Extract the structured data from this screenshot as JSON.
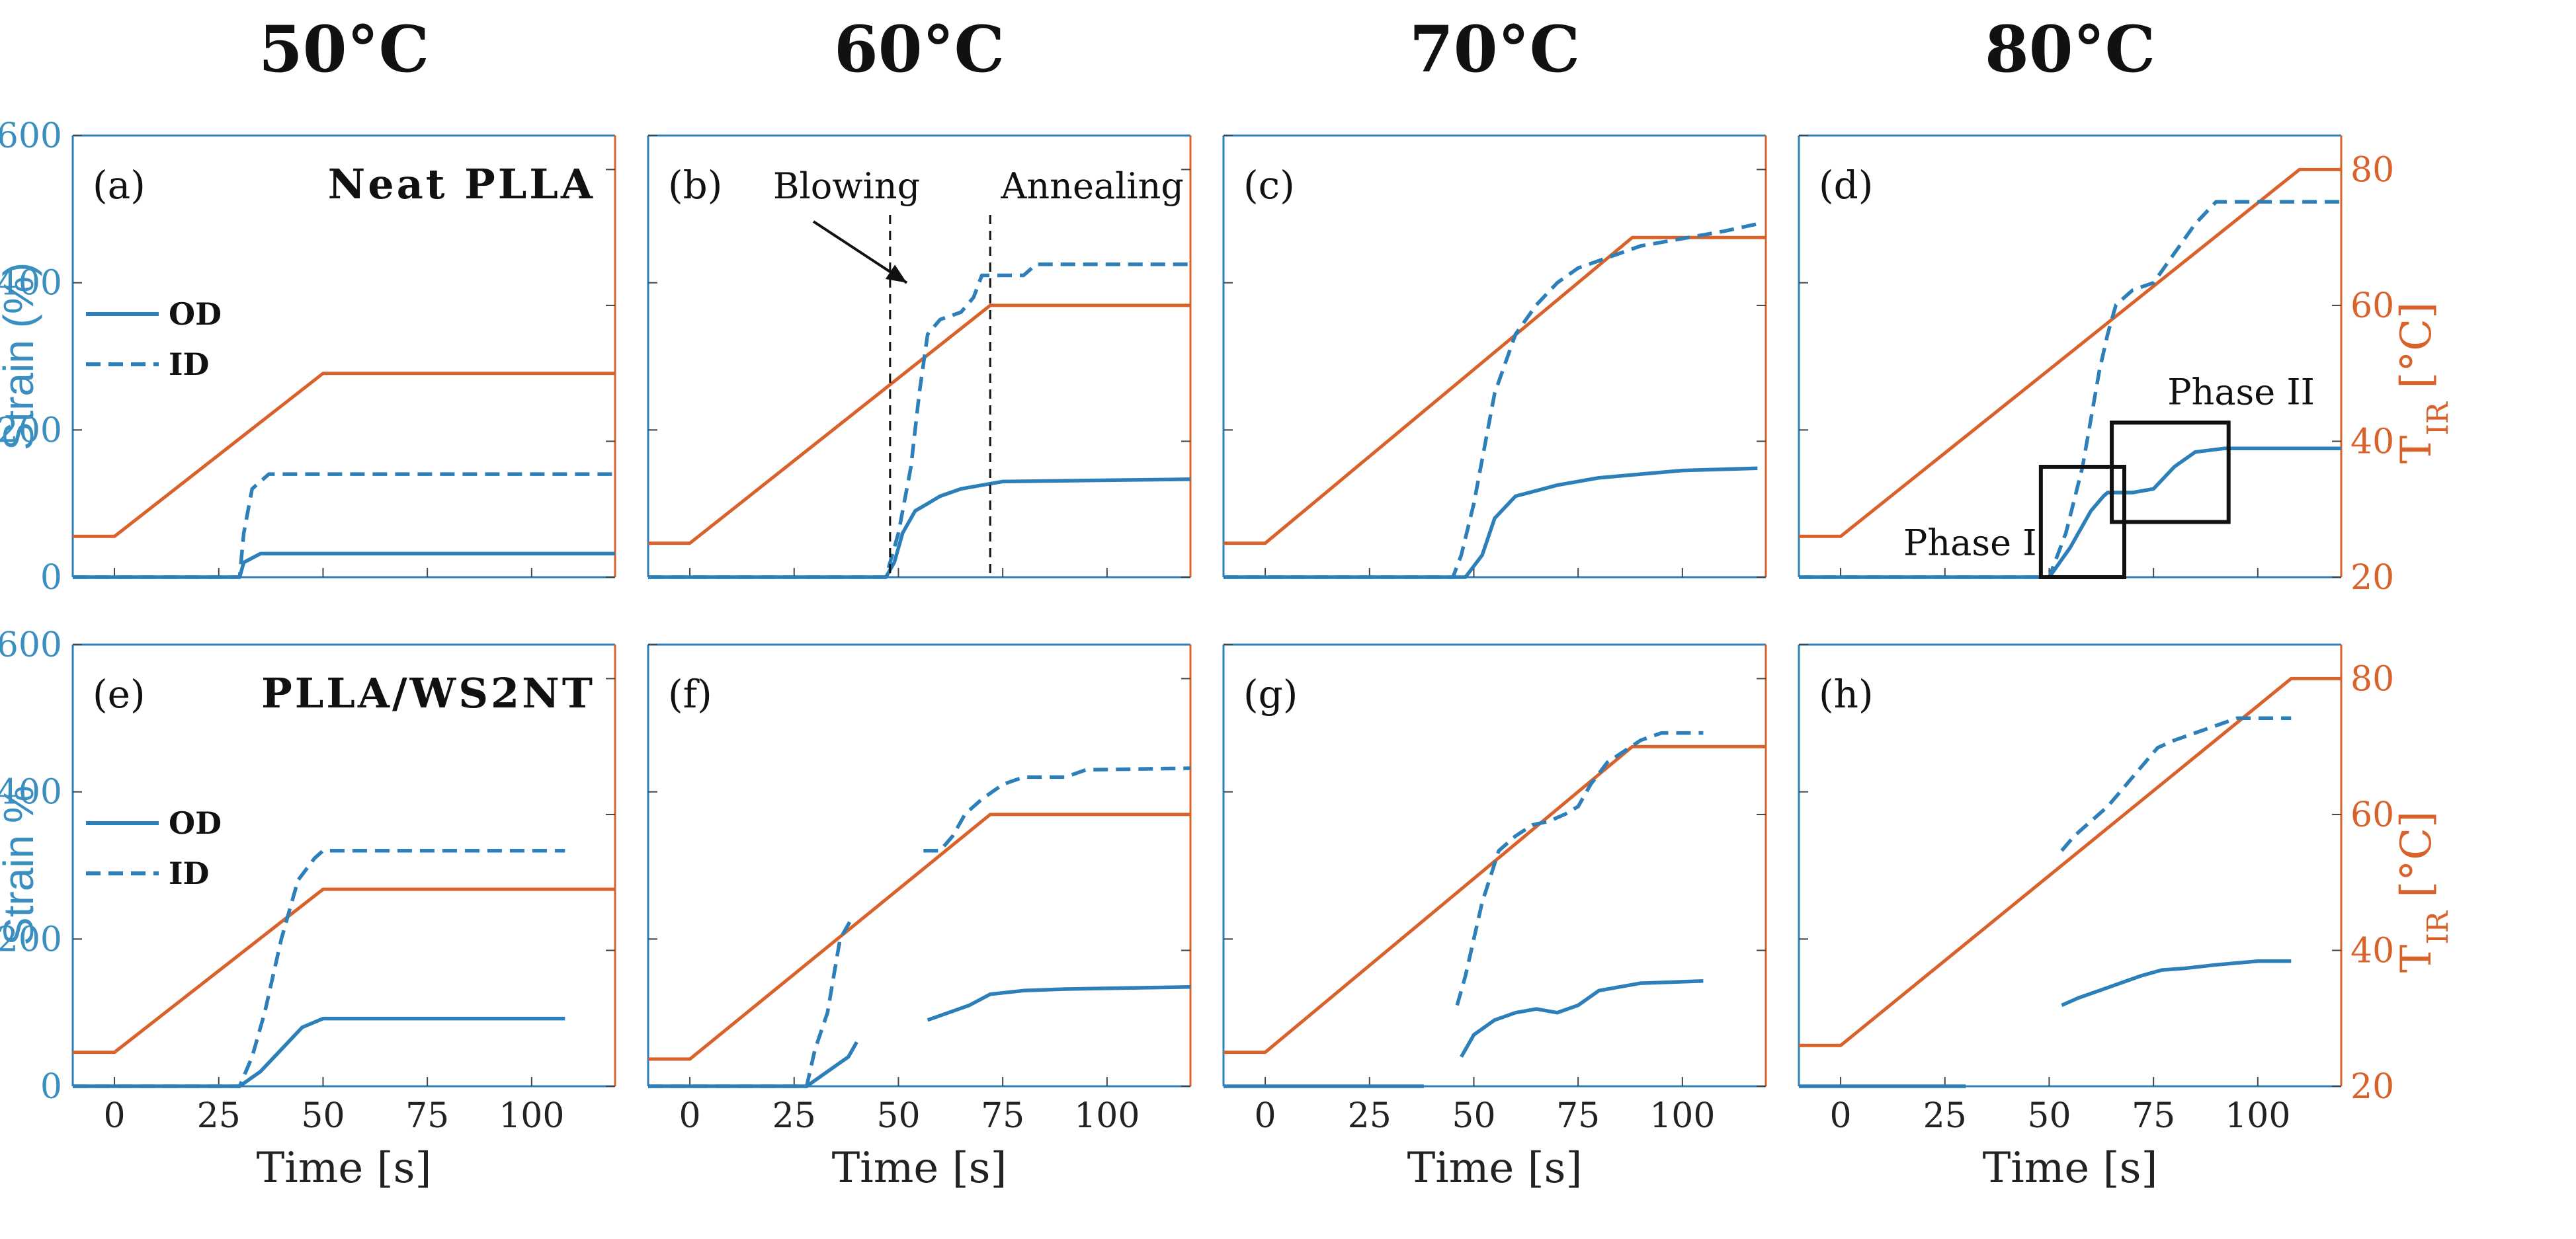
{
  "chart_data": [
    {
      "type": "line",
      "panel": "(a)",
      "title": "50°C",
      "material": "Neat PLLA",
      "ylabel_left": "Strain (%)",
      "ylabel_right": "",
      "xlabel": "",
      "show_x_ticks": false,
      "show_left_ticks": true,
      "show_right_ticks": false,
      "xlim": [
        -10,
        120
      ],
      "ylim_left": [
        0,
        600
      ],
      "ylim_right": [
        20,
        85
      ],
      "xticks": [
        "0",
        "25",
        "50",
        "75",
        "100"
      ],
      "yticks_left": [
        "0",
        "200",
        "400",
        "600"
      ],
      "yticks_right": [],
      "legend": [
        "OD",
        "ID"
      ],
      "annotations": [],
      "series": [
        {
          "name": "T_IR",
          "axis": "right",
          "style": "solid",
          "color": "#d9622b",
          "x": [
            -10,
            0,
            50,
            120
          ],
          "y": [
            26,
            26,
            50,
            50
          ]
        },
        {
          "name": "OD",
          "axis": "left",
          "style": "solid",
          "color": "#2c7fb8",
          "x": [
            -10,
            30,
            31,
            35,
            120
          ],
          "y": [
            0,
            0,
            20,
            32,
            32
          ]
        },
        {
          "name": "ID",
          "axis": "left",
          "style": "dashed",
          "color": "#2c7fb8",
          "x": [
            -10,
            30,
            31,
            33,
            37,
            120
          ],
          "y": [
            0,
            0,
            60,
            120,
            140,
            140
          ]
        }
      ]
    },
    {
      "type": "line",
      "panel": "(b)",
      "title": "60°C",
      "material": "",
      "ylabel_left": "",
      "ylabel_right": "",
      "xlabel": "",
      "show_x_ticks": false,
      "show_left_ticks": false,
      "show_right_ticks": false,
      "xlim": [
        -10,
        120
      ],
      "ylim_left": [
        0,
        600
      ],
      "ylim_right": [
        20,
        85
      ],
      "xticks": [
        "0",
        "25",
        "50",
        "75",
        "100"
      ],
      "yticks_left": [],
      "yticks_right": [],
      "legend": [],
      "annotations": [
        "Blowing",
        "Annealing"
      ],
      "series": [
        {
          "name": "T_IR",
          "axis": "right",
          "style": "solid",
          "color": "#d9622b",
          "x": [
            -10,
            0,
            72,
            120
          ],
          "y": [
            25,
            25,
            60,
            60
          ]
        },
        {
          "name": "OD",
          "axis": "left",
          "style": "solid",
          "color": "#2c7fb8",
          "x": [
            -10,
            47,
            49,
            51,
            54,
            57,
            60,
            65,
            70,
            75,
            120
          ],
          "y": [
            0,
            0,
            20,
            60,
            90,
            100,
            110,
            120,
            125,
            130,
            133
          ]
        },
        {
          "name": "ID",
          "axis": "left",
          "style": "dashed",
          "color": "#2c7fb8",
          "x": [
            -10,
            47,
            50,
            53,
            55,
            57,
            60,
            65,
            68,
            70,
            80,
            83,
            120
          ],
          "y": [
            0,
            0,
            60,
            150,
            250,
            330,
            350,
            360,
            380,
            410,
            410,
            425,
            425
          ]
        }
      ]
    },
    {
      "type": "line",
      "panel": "(c)",
      "title": "70°C",
      "material": "",
      "ylabel_left": "",
      "ylabel_right": "",
      "xlabel": "",
      "show_x_ticks": false,
      "show_left_ticks": false,
      "show_right_ticks": false,
      "xlim": [
        -10,
        120
      ],
      "ylim_left": [
        0,
        600
      ],
      "ylim_right": [
        20,
        85
      ],
      "xticks": [
        "0",
        "25",
        "50",
        "75",
        "100"
      ],
      "yticks_left": [],
      "yticks_right": [],
      "legend": [],
      "annotations": [],
      "series": [
        {
          "name": "T_IR",
          "axis": "right",
          "style": "solid",
          "color": "#d9622b",
          "x": [
            -10,
            0,
            88,
            120
          ],
          "y": [
            25,
            25,
            70,
            70
          ]
        },
        {
          "name": "OD",
          "axis": "left",
          "style": "solid",
          "color": "#2c7fb8",
          "x": [
            -10,
            48,
            52,
            55,
            60,
            70,
            80,
            90,
            100,
            118
          ],
          "y": [
            0,
            0,
            30,
            80,
            110,
            125,
            135,
            140,
            145,
            148
          ]
        },
        {
          "name": "ID",
          "axis": "left",
          "style": "dashed",
          "color": "#2c7fb8",
          "x": [
            -10,
            45,
            47,
            50,
            55,
            60,
            65,
            70,
            75,
            80,
            90,
            100,
            110,
            118
          ],
          "y": [
            0,
            0,
            30,
            100,
            250,
            330,
            370,
            400,
            420,
            430,
            450,
            460,
            470,
            480
          ]
        }
      ]
    },
    {
      "type": "line",
      "panel": "(d)",
      "title": "80°C",
      "material": "",
      "ylabel_left": "",
      "ylabel_right": "T_IR [°C]",
      "xlabel": "",
      "show_x_ticks": false,
      "show_left_ticks": false,
      "show_right_ticks": true,
      "xlim": [
        -10,
        120
      ],
      "ylim_left": [
        0,
        600
      ],
      "ylim_right": [
        20,
        85
      ],
      "xticks": [
        "0",
        "25",
        "50",
        "75",
        "100"
      ],
      "yticks_left": [],
      "yticks_right": [
        "20",
        "40",
        "60",
        "80"
      ],
      "legend": [],
      "annotations": [
        "Phase I",
        "Phase II"
      ],
      "series": [
        {
          "name": "T_IR",
          "axis": "right",
          "style": "solid",
          "color": "#d9622b",
          "x": [
            -10,
            0,
            110,
            120
          ],
          "y": [
            26,
            26,
            80,
            80
          ]
        },
        {
          "name": "OD",
          "axis": "left",
          "style": "solid",
          "color": "#2c7fb8",
          "x": [
            -10,
            50,
            55,
            60,
            63,
            64,
            70,
            75,
            80,
            85,
            92,
            120
          ],
          "y": [
            0,
            0,
            40,
            90,
            110,
            115,
            115,
            120,
            150,
            170,
            175,
            175
          ]
        },
        {
          "name": "ID",
          "axis": "left",
          "style": "dashed",
          "color": "#2c7fb8",
          "x": [
            -10,
            50,
            54,
            58,
            62,
            64,
            66,
            70,
            75,
            80,
            85,
            90,
            120
          ],
          "y": [
            0,
            0,
            60,
            150,
            280,
            330,
            370,
            390,
            400,
            440,
            480,
            510,
            510
          ]
        }
      ]
    },
    {
      "type": "line",
      "panel": "(e)",
      "title": "",
      "material": "PLLA/WS2NT",
      "ylabel_left": "Strain %",
      "ylabel_right": "",
      "xlabel": "Time [s]",
      "show_x_ticks": true,
      "show_left_ticks": true,
      "show_right_ticks": false,
      "xlim": [
        -10,
        120
      ],
      "ylim_left": [
        0,
        600
      ],
      "ylim_right": [
        20,
        85
      ],
      "xticks": [
        "0",
        "25",
        "50",
        "75",
        "100"
      ],
      "yticks_left": [
        "0",
        "200",
        "400",
        "600"
      ],
      "yticks_right": [],
      "legend": [
        "OD",
        "ID"
      ],
      "annotations": [],
      "series": [
        {
          "name": "T_IR",
          "axis": "right",
          "style": "solid",
          "color": "#d9622b",
          "x": [
            -10,
            0,
            50,
            120
          ],
          "y": [
            25,
            25,
            49,
            49
          ]
        },
        {
          "name": "OD",
          "axis": "left",
          "style": "solid",
          "color": "#2c7fb8",
          "x": [
            -10,
            30,
            35,
            40,
            45,
            50,
            108
          ],
          "y": [
            0,
            0,
            20,
            50,
            80,
            92,
            92
          ]
        },
        {
          "name": "ID",
          "axis": "left",
          "style": "dashed",
          "color": "#2c7fb8",
          "x": [
            -10,
            30,
            33,
            36,
            40,
            44,
            48,
            50,
            108
          ],
          "y": [
            0,
            0,
            40,
            100,
            200,
            280,
            310,
            320,
            320
          ]
        }
      ]
    },
    {
      "type": "line",
      "panel": "(f)",
      "title": "",
      "material": "",
      "ylabel_left": "",
      "ylabel_right": "",
      "xlabel": "Time [s]",
      "show_x_ticks": true,
      "show_left_ticks": false,
      "show_right_ticks": false,
      "xlim": [
        -10,
        120
      ],
      "ylim_left": [
        0,
        600
      ],
      "ylim_right": [
        20,
        85
      ],
      "xticks": [
        "0",
        "25",
        "50",
        "75",
        "100"
      ],
      "yticks_left": [],
      "yticks_right": [],
      "legend": [],
      "annotations": [],
      "series": [
        {
          "name": "T_IR",
          "axis": "right",
          "style": "solid",
          "color": "#d9622b",
          "x": [
            -10,
            0,
            72,
            120
          ],
          "y": [
            24,
            24,
            60,
            60
          ]
        },
        {
          "name": "OD",
          "axis": "left",
          "style": "solid",
          "color": "#2c7fb8",
          "x": [
            -10,
            28,
            33,
            38,
            40
          ],
          "y": [
            0,
            0,
            20,
            40,
            60
          ]
        },
        {
          "name": "OD",
          "axis": "left",
          "style": "solid",
          "color": "#2c7fb8",
          "x": [
            57,
            62,
            67,
            72,
            80,
            90,
            100,
            120
          ],
          "y": [
            90,
            100,
            110,
            125,
            130,
            132,
            133,
            135
          ]
        },
        {
          "name": "ID",
          "axis": "left",
          "style": "dashed",
          "color": "#2c7fb8",
          "x": [
            -10,
            28,
            30,
            33,
            36,
            39
          ],
          "y": [
            0,
            0,
            50,
            100,
            200,
            230
          ]
        },
        {
          "name": "ID",
          "axis": "left",
          "style": "dashed",
          "color": "#2c7fb8",
          "x": [
            56,
            60,
            63,
            66,
            70,
            75,
            80,
            90,
            95,
            120
          ],
          "y": [
            320,
            320,
            340,
            370,
            390,
            410,
            420,
            420,
            430,
            432
          ]
        }
      ]
    },
    {
      "type": "line",
      "panel": "(g)",
      "title": "",
      "material": "",
      "ylabel_left": "",
      "ylabel_right": "",
      "xlabel": "Time [s]",
      "show_x_ticks": true,
      "show_left_ticks": false,
      "show_right_ticks": false,
      "xlim": [
        -10,
        120
      ],
      "ylim_left": [
        0,
        600
      ],
      "ylim_right": [
        20,
        85
      ],
      "xticks": [
        "0",
        "25",
        "50",
        "75",
        "100"
      ],
      "yticks_left": [],
      "yticks_right": [],
      "legend": [],
      "annotations": [],
      "series": [
        {
          "name": "T_IR",
          "axis": "right",
          "style": "solid",
          "color": "#d9622b",
          "x": [
            -10,
            0,
            88,
            120
          ],
          "y": [
            25,
            25,
            70,
            70
          ]
        },
        {
          "name": "OD",
          "axis": "left",
          "style": "solid",
          "color": "#2c7fb8",
          "x": [
            -10,
            38
          ],
          "y": [
            0,
            0
          ]
        },
        {
          "name": "OD",
          "axis": "left",
          "style": "solid",
          "color": "#2c7fb8",
          "x": [
            47,
            50,
            55,
            60,
            65,
            70,
            75,
            80,
            90,
            105
          ],
          "y": [
            40,
            70,
            90,
            100,
            105,
            100,
            110,
            130,
            140,
            143
          ]
        },
        {
          "name": "ID",
          "axis": "left",
          "style": "dashed",
          "color": "#2c7fb8",
          "x": [
            46,
            48,
            52,
            56,
            60,
            64,
            68,
            72,
            75,
            78,
            82,
            90,
            95,
            105
          ],
          "y": [
            110,
            150,
            250,
            320,
            340,
            355,
            360,
            370,
            380,
            410,
            440,
            470,
            480,
            480
          ]
        }
      ]
    },
    {
      "type": "line",
      "panel": "(h)",
      "title": "",
      "material": "",
      "ylabel_left": "",
      "ylabel_right": "T_IR [°C]",
      "xlabel": "Time [s]",
      "show_x_ticks": true,
      "show_left_ticks": false,
      "show_right_ticks": true,
      "xlim": [
        -10,
        120
      ],
      "ylim_left": [
        0,
        600
      ],
      "ylim_right": [
        20,
        85
      ],
      "xticks": [
        "0",
        "25",
        "50",
        "75",
        "100"
      ],
      "yticks_left": [],
      "yticks_right": [
        "20",
        "40",
        "60",
        "80"
      ],
      "legend": [],
      "annotations": [],
      "series": [
        {
          "name": "T_IR",
          "axis": "right",
          "style": "solid",
          "color": "#d9622b",
          "x": [
            -10,
            0,
            108,
            120
          ],
          "y": [
            26,
            26,
            80,
            80
          ]
        },
        {
          "name": "OD",
          "axis": "left",
          "style": "solid",
          "color": "#2c7fb8",
          "x": [
            -10,
            30
          ],
          "y": [
            0,
            0
          ]
        },
        {
          "name": "OD",
          "axis": "left",
          "style": "solid",
          "color": "#2c7fb8",
          "x": [
            53,
            57,
            62,
            67,
            72,
            77,
            82,
            90,
            100,
            108
          ],
          "y": [
            110,
            120,
            130,
            140,
            150,
            158,
            160,
            165,
            170,
            170
          ]
        },
        {
          "name": "ID",
          "axis": "left",
          "style": "dashed",
          "color": "#2c7fb8",
          "x": [
            53,
            56,
            60,
            64,
            67,
            70,
            73,
            76,
            80,
            85,
            90,
            95,
            108
          ],
          "y": [
            320,
            340,
            360,
            380,
            400,
            420,
            440,
            460,
            470,
            480,
            490,
            500,
            500
          ]
        }
      ]
    }
  ],
  "figure": {
    "column_titles": [
      "50°C",
      "60°C",
      "70°C",
      "80°C"
    ]
  },
  "colors": {
    "strain": "#2c7fb8",
    "temperature": "#d9622b",
    "strain_text": "#3b8fc0"
  }
}
